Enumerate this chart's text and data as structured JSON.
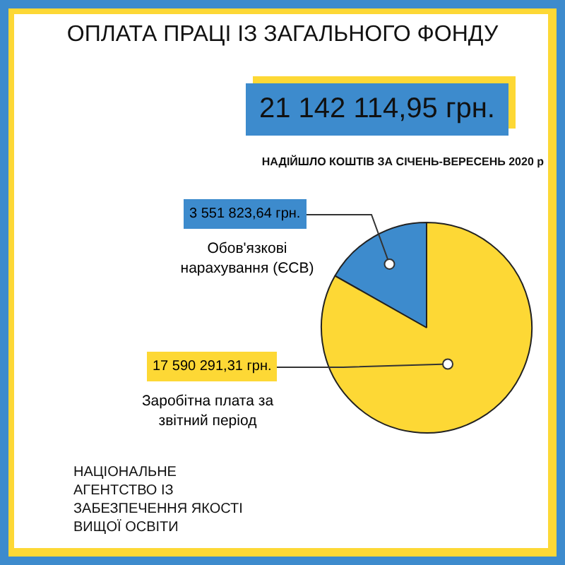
{
  "chart_data": {
    "type": "pie",
    "title": "ОПЛАТА ПРАЦІ ІЗ ЗАГАЛЬНОГО ФОНДУ",
    "subtitle": "НАДІЙШЛО КОШТІВ ЗА СІЧЕНЬ-ВЕРЕСЕНЬ 2020 р",
    "categories": [
      "Обов'язкові нарахування (ЄСВ)",
      "Заробітна плата за звітний період"
    ],
    "values": [
      3551823.64,
      17590291.31
    ],
    "colors": [
      "#3d8bcd",
      "#fdd835"
    ],
    "value_labels": [
      "3 551 823,64 грн.",
      "17 590 291,31 грн."
    ],
    "annotations": [
      "21 142 114,95 грн.",
      "НАЦІОНАЛЬНЕ АГЕНТСТВО ІЗ ЗАБЕЗПЕЧЕННЯ ЯКОСТІ ВИЩОЇ ОСВІТИ"
    ],
    "legend": false
  }
}
